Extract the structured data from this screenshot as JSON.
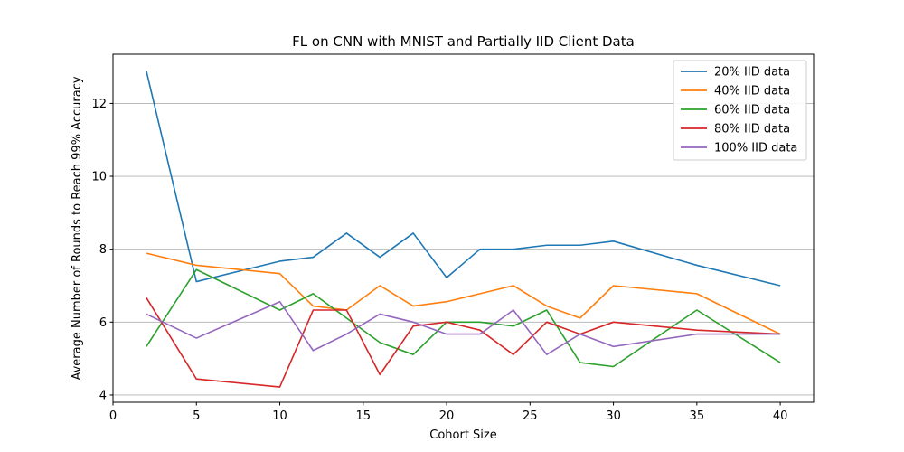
{
  "chart_data": {
    "type": "line",
    "title": "FL on CNN with MNIST and Partially IID Client Data",
    "xlabel": "Cohort Size",
    "ylabel": "Average Number of Rounds to Reach 99% Accuracy",
    "xlim": [
      0,
      42
    ],
    "ylim": [
      3.8,
      13.35
    ],
    "x_ticks": [
      0,
      5,
      10,
      15,
      20,
      25,
      30,
      35,
      40
    ],
    "y_ticks": [
      4,
      6,
      8,
      10,
      12
    ],
    "grid": "horizontal",
    "legend_position": "top-right",
    "x": [
      2,
      5,
      10,
      12,
      14,
      16,
      18,
      20,
      22,
      24,
      26,
      28,
      30,
      35,
      40
    ],
    "series": [
      {
        "name": "20% IID data",
        "color": "#1f77b4",
        "values": [
          12.89,
          7.11,
          7.67,
          7.78,
          8.44,
          7.78,
          8.44,
          7.22,
          8.0,
          8.0,
          8.11,
          8.11,
          8.22,
          7.56,
          7.0
        ]
      },
      {
        "name": "40% IID data",
        "color": "#ff7f0e",
        "values": [
          7.89,
          7.56,
          7.33,
          6.44,
          6.33,
          7.0,
          6.44,
          6.56,
          6.78,
          7.0,
          6.44,
          6.11,
          7.0,
          6.78,
          5.67
        ]
      },
      {
        "name": "60% IID data",
        "color": "#2ca02c",
        "values": [
          5.33,
          7.44,
          6.33,
          6.78,
          6.11,
          5.44,
          5.11,
          6.0,
          6.0,
          5.89,
          6.33,
          4.89,
          4.78,
          6.33,
          4.89
        ]
      },
      {
        "name": "80% IID data",
        "color": "#d62728",
        "values": [
          6.67,
          4.44,
          4.22,
          6.33,
          6.33,
          4.56,
          5.89,
          6.0,
          5.78,
          5.11,
          6.0,
          5.67,
          6.0,
          5.78,
          5.67
        ]
      },
      {
        "name": "100% IID data",
        "color": "#9467bd",
        "values": [
          6.22,
          5.56,
          6.56,
          5.22,
          5.67,
          6.22,
          6.0,
          5.67,
          5.67,
          6.33,
          5.11,
          5.67,
          5.33,
          5.67,
          5.67
        ]
      }
    ]
  }
}
